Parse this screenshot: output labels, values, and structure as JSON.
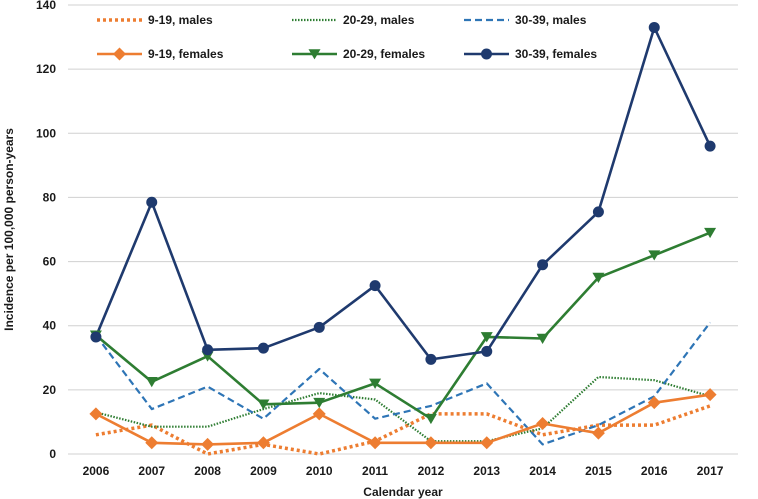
{
  "chart_data": {
    "type": "line",
    "title": "",
    "xlabel": "Calendar year",
    "ylabel": "Incidence per 100,000 person-years",
    "ylim": [
      0,
      140
    ],
    "yticks": [
      0,
      20,
      40,
      60,
      80,
      100,
      120,
      140
    ],
    "grid": true,
    "legend_position": "top",
    "categories": [
      "2006",
      "2007",
      "2008",
      "2009",
      "2010",
      "2011",
      "2012",
      "2013",
      "2014",
      "2015",
      "2016",
      "2017"
    ],
    "series": [
      {
        "name": "9-19, males",
        "color": "#ED7D31",
        "dash": "dotted",
        "marker": "none",
        "values": [
          6,
          9,
          0,
          3,
          0,
          4,
          12.5,
          12.5,
          6,
          9,
          9,
          15
        ]
      },
      {
        "name": "20-29, males",
        "color": "#2E7D32",
        "dash": "finedot",
        "marker": "none",
        "values": [
          13,
          8.5,
          8.5,
          14,
          19,
          17,
          4,
          4,
          8,
          24,
          23,
          18
        ]
      },
      {
        "name": "30-39, males",
        "color": "#2E75B6",
        "dash": "dashed",
        "marker": "none",
        "values": [
          37,
          14,
          21,
          11,
          26.5,
          11,
          15,
          22,
          3,
          9,
          18,
          41
        ]
      },
      {
        "name": "9-19, females",
        "color": "#ED7D31",
        "dash": "solid",
        "marker": "diamond",
        "values": [
          12.5,
          3.5,
          3,
          3.5,
          12.5,
          3.5,
          3.5,
          3.5,
          9.5,
          6.5,
          16,
          18.5
        ]
      },
      {
        "name": "20-29, females",
        "color": "#2E7D32",
        "dash": "solid",
        "marker": "triangle",
        "values": [
          37,
          22.5,
          30.5,
          15.5,
          16,
          22,
          11,
          36.5,
          36,
          55,
          62,
          69
        ]
      },
      {
        "name": "30-39, females",
        "color": "#1F3A6E",
        "dash": "solid",
        "marker": "circle",
        "values": [
          36.5,
          78.5,
          32.5,
          33,
          39.5,
          52.5,
          29.5,
          32,
          59,
          75.5,
          133,
          96
        ]
      }
    ]
  }
}
